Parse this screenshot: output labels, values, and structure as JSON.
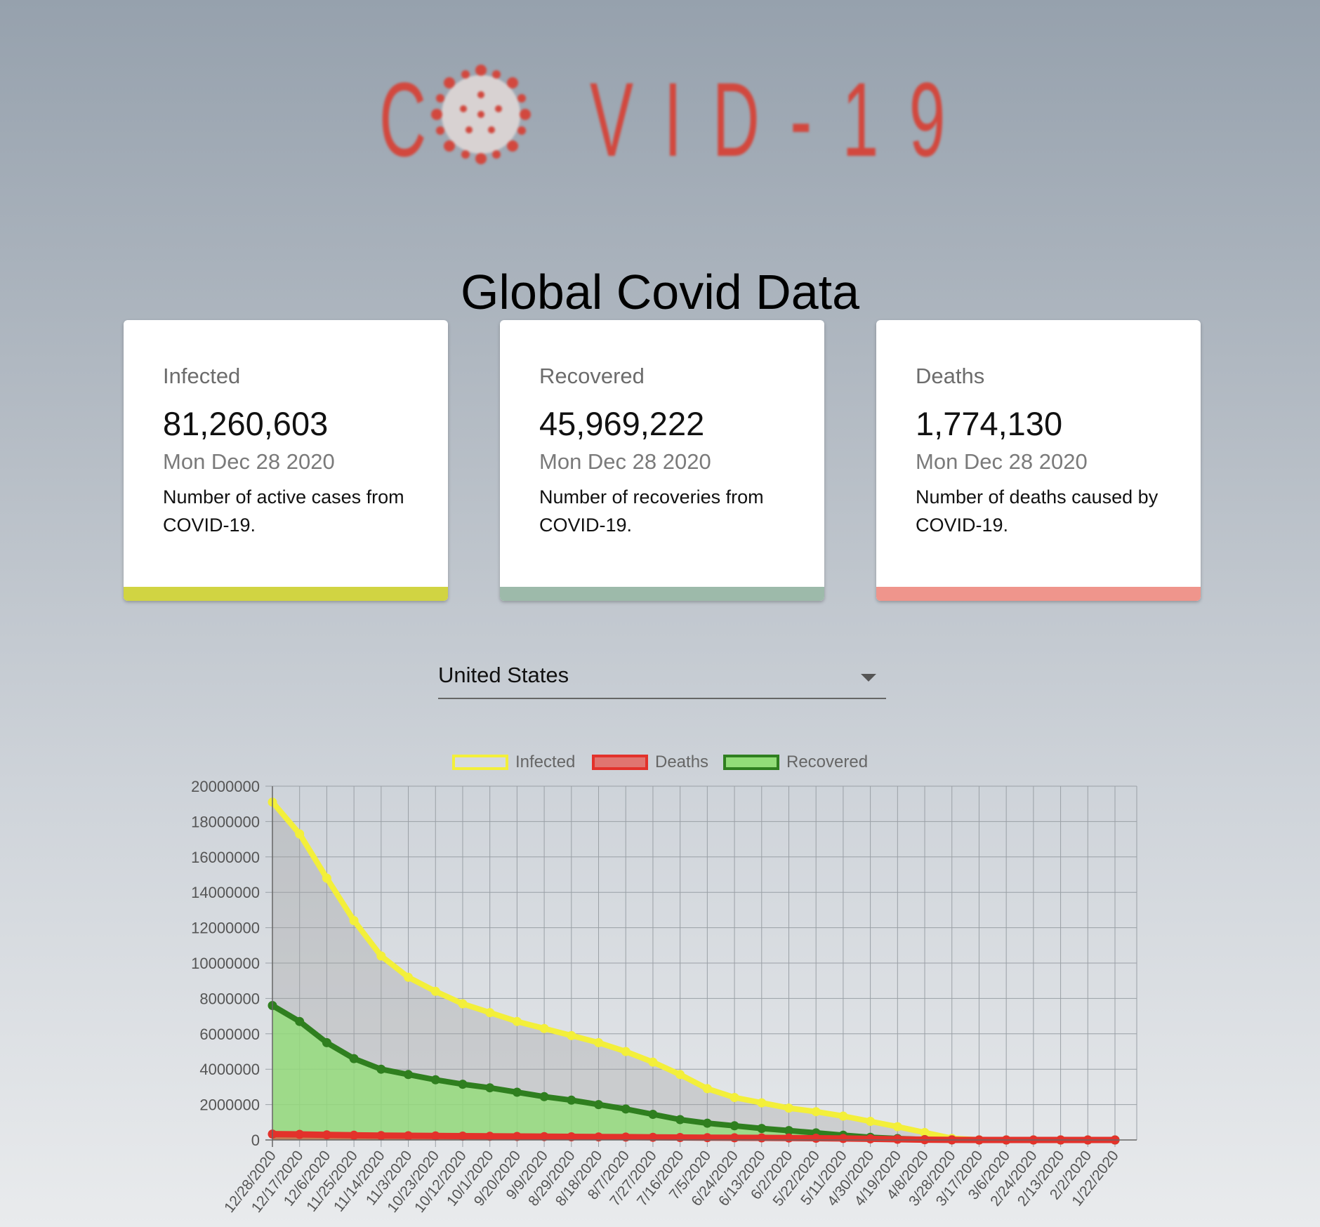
{
  "logo": {
    "c": "C",
    "rest": "VID-19"
  },
  "page_title": "Global Covid Data",
  "cards": [
    {
      "label": "Infected",
      "value": "81,260,603",
      "date": "Mon Dec 28 2020",
      "description": "Number of active cases from COVID-19.",
      "color": "#d1d442"
    },
    {
      "label": "Recovered",
      "value": "45,969,222",
      "date": "Mon Dec 28 2020",
      "description": "Number of recoveries from COVID-19.",
      "color": "#9dbaaa"
    },
    {
      "label": "Deaths",
      "value": "1,774,130",
      "date": "Mon Dec 28 2020",
      "description": "Number of deaths caused by COVID-19.",
      "color": "#ef958c"
    }
  ],
  "country_select": {
    "value": "United States"
  },
  "chart_data": {
    "type": "area",
    "title": "",
    "xlabel": "",
    "ylabel": "",
    "ylim": [
      0,
      20000000
    ],
    "yticks": [
      "20000000",
      "18000000",
      "16000000",
      "14000000",
      "12000000",
      "10000000",
      "8000000",
      "6000000",
      "4000000",
      "2000000",
      "0"
    ],
    "xticks": [
      "12/28/2020",
      "12/17/2020",
      "12/6/2020",
      "11/25/2020",
      "11/14/2020",
      "11/3/2020",
      "10/23/2020",
      "10/12/2020",
      "10/1/2020",
      "9/20/2020",
      "9/9/2020",
      "8/29/2020",
      "8/18/2020",
      "8/7/2020",
      "7/27/2020",
      "7/16/2020",
      "7/5/2020",
      "6/24/2020",
      "6/13/2020",
      "6/2/2020",
      "5/22/2020",
      "5/11/2020",
      "4/30/2020",
      "4/19/2020",
      "4/8/2020",
      "3/28/2020",
      "3/17/2020",
      "3/6/2020",
      "2/24/2020",
      "2/13/2020",
      "2/2/2020",
      "1/22/2020"
    ],
    "legend_position": "top",
    "grid": true,
    "series": [
      {
        "name": "Infected",
        "color": "#f3ef3a",
        "fill": "rgba(160,160,160,0.35)",
        "values": [
          19100000,
          17300000,
          14800000,
          12400000,
          10400000,
          9200000,
          8400000,
          7700000,
          7200000,
          6700000,
          6300000,
          5900000,
          5500000,
          5000000,
          4400000,
          3700000,
          2900000,
          2400000,
          2100000,
          1800000,
          1600000,
          1350000,
          1050000,
          750000,
          420000,
          90000,
          5000,
          100,
          15,
          13,
          8,
          1
        ]
      },
      {
        "name": "Deaths",
        "color": "#e3322b",
        "fill": "rgba(227,50,43,0.55)",
        "values": [
          335000,
          317000,
          290000,
          265000,
          250000,
          238000,
          227000,
          217000,
          208000,
          199000,
          189000,
          178000,
          170000,
          162000,
          150000,
          140000,
          132000,
          125000,
          118000,
          110000,
          98000,
          82000,
          64000,
          40000,
          14000,
          2000,
          100,
          10,
          0,
          0,
          0,
          0
        ]
      },
      {
        "name": "Recovered",
        "color": "#2f7f1f",
        "fill": "rgba(146,221,120,0.8)",
        "values": [
          7600000,
          6700000,
          5500000,
          4600000,
          4000000,
          3700000,
          3400000,
          3150000,
          2950000,
          2700000,
          2450000,
          2250000,
          2000000,
          1750000,
          1450000,
          1150000,
          950000,
          800000,
          650000,
          530000,
          400000,
          270000,
          150000,
          80000,
          20000,
          5000,
          500,
          50,
          5,
          3,
          0,
          0
        ]
      }
    ]
  }
}
